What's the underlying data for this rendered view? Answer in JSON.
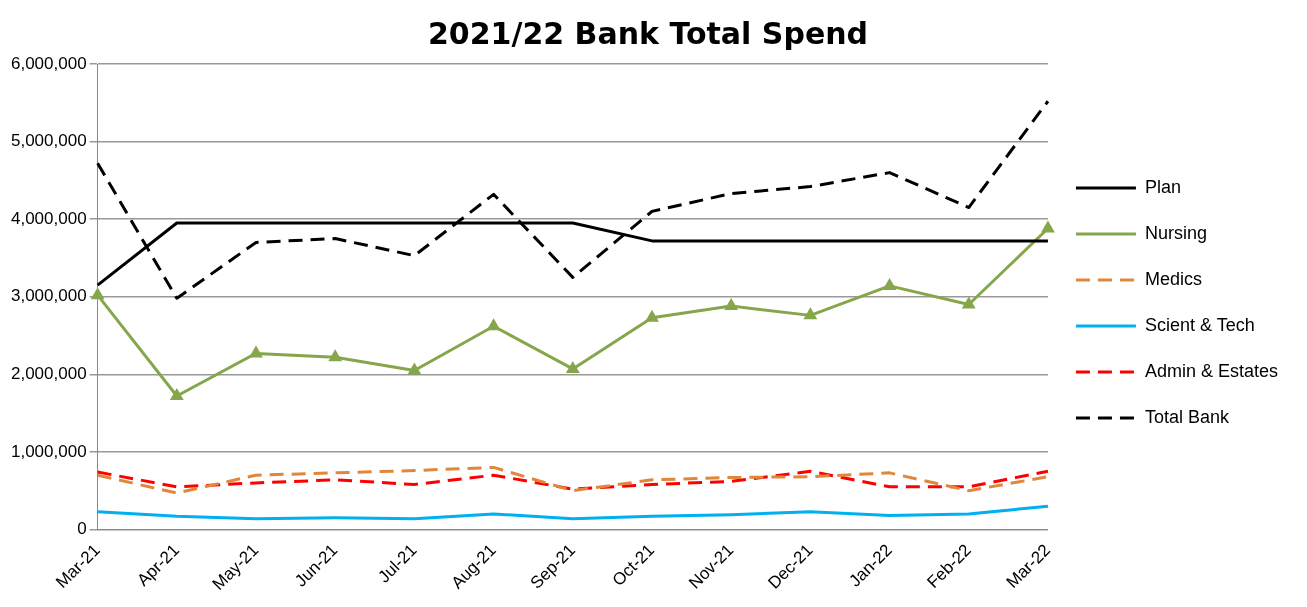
{
  "chart_data": {
    "type": "line",
    "title": "2021/22 Bank Total Spend",
    "categories": [
      "Mar-21",
      "Apr-21",
      "May-21",
      "Jun-21",
      "Jul-21",
      "Aug-21",
      "Sep-21",
      "Oct-21",
      "Nov-21",
      "Dec-21",
      "Jan-22",
      "Feb-22",
      "Mar-22"
    ],
    "series": [
      {
        "name": "Plan",
        "color": "#000000",
        "line_style": "solid",
        "marker": "none",
        "values": [
          3150000,
          3950000,
          3950000,
          3950000,
          3950000,
          3950000,
          3950000,
          3720000,
          3720000,
          3720000,
          3720000,
          3720000,
          3720000
        ]
      },
      {
        "name": "Nursing",
        "color": "#86a64b",
        "line_style": "solid",
        "marker": "triangle",
        "values": [
          3020000,
          1720000,
          2270000,
          2220000,
          2050000,
          2620000,
          2070000,
          2730000,
          2880000,
          2760000,
          3140000,
          2900000,
          3880000
        ]
      },
      {
        "name": "Medics",
        "color": "#e0873c",
        "line_style": "dashed",
        "marker": "none",
        "values": [
          700000,
          470000,
          700000,
          730000,
          760000,
          800000,
          500000,
          640000,
          670000,
          680000,
          730000,
          500000,
          680000
        ]
      },
      {
        "name": "Scient & Tech",
        "color": "#00b0f0",
        "line_style": "solid",
        "marker": "none",
        "values": [
          230000,
          170000,
          140000,
          150000,
          140000,
          200000,
          140000,
          170000,
          190000,
          230000,
          180000,
          200000,
          300000
        ]
      },
      {
        "name": "Admin & Estates",
        "color": "#ff0000",
        "line_style": "dashed",
        "marker": "none",
        "values": [
          740000,
          550000,
          600000,
          640000,
          580000,
          700000,
          520000,
          580000,
          620000,
          750000,
          550000,
          550000,
          750000
        ]
      },
      {
        "name": "Total Bank",
        "color": "#000000",
        "line_style": "dashed",
        "marker": "none",
        "values": [
          4720000,
          2980000,
          3700000,
          3750000,
          3530000,
          4320000,
          3250000,
          4100000,
          4330000,
          4420000,
          4600000,
          4150000,
          5520000
        ]
      }
    ],
    "ylim": [
      0,
      6000000
    ],
    "yticks": [
      0,
      {
        "value": 1000000,
        "label": "1,000,000"
      },
      {
        "value": 2000000,
        "label": "2,000,000"
      },
      {
        "value": 3000000,
        "label": "3,000,000"
      },
      {
        "value": 4000000,
        "label": "4,000,000"
      },
      {
        "value": 5000000,
        "label": "5,000,000"
      },
      {
        "value": 6000000,
        "label": "6,000,000"
      }
    ],
    "grid": "y",
    "legend": "right"
  }
}
